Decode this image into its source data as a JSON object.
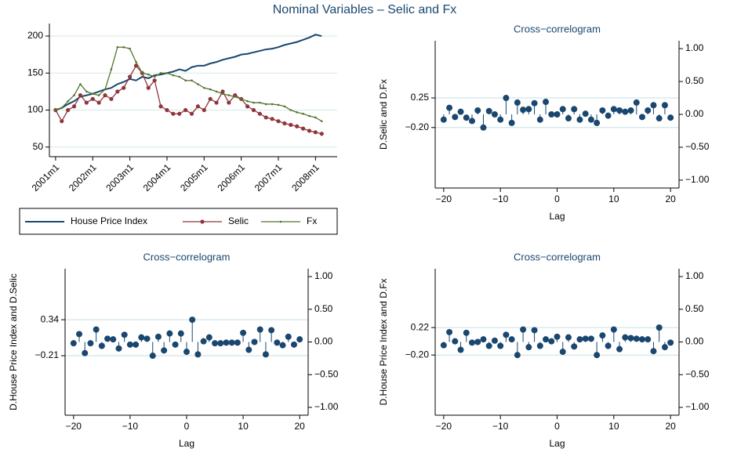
{
  "title": "Nominal Variables – Selic and Fx",
  "chart_data": [
    {
      "type": "line",
      "x": [
        "2001m1",
        "2001m3",
        "2001m5",
        "2001m7",
        "2001m9",
        "2001m11",
        "2002m1",
        "2002m3",
        "2002m5",
        "2002m7",
        "2002m9",
        "2002m11",
        "2003m1",
        "2003m3",
        "2003m5",
        "2003m7",
        "2003m9",
        "2003m11",
        "2004m1",
        "2004m3",
        "2004m5",
        "2004m7",
        "2004m9",
        "2004m11",
        "2005m1",
        "2005m3",
        "2005m5",
        "2005m7",
        "2005m9",
        "2005m11",
        "2006m1",
        "2006m3",
        "2006m5",
        "2006m7",
        "2006m9",
        "2006m11",
        "2007m1",
        "2007m3",
        "2007m5",
        "2007m7",
        "2007m9",
        "2007m11",
        "2008m1",
        "2008m3"
      ],
      "xlim": [
        "2000m11",
        "2008m8"
      ],
      "xticks": [
        "2001m1",
        "2002m1",
        "2003m1",
        "2004m1",
        "2005m1",
        "2006m1",
        "2007m1",
        "2008m1"
      ],
      "ylim": [
        37,
        217
      ],
      "yticks": [
        50,
        100,
        150,
        200
      ],
      "grid": true,
      "series": [
        {
          "name": "House Price Index",
          "color": "#1a476f",
          "values": [
            100,
            103,
            108,
            112,
            118,
            120,
            122,
            125,
            128,
            130,
            135,
            138,
            142,
            140,
            145,
            143,
            147,
            148,
            150,
            152,
            155,
            153,
            158,
            160,
            160,
            163,
            165,
            168,
            170,
            172,
            175,
            176,
            178,
            180,
            182,
            183,
            185,
            188,
            190,
            192,
            195,
            198,
            202,
            200
          ]
        },
        {
          "name": "Selic",
          "color": "#90353b",
          "values": [
            100,
            85,
            100,
            105,
            120,
            110,
            115,
            110,
            120,
            115,
            125,
            130,
            145,
            160,
            150,
            130,
            140,
            105,
            100,
            95,
            95,
            100,
            95,
            105,
            100,
            115,
            110,
            125,
            110,
            120,
            115,
            105,
            100,
            95,
            90,
            88,
            85,
            82,
            80,
            78,
            75,
            72,
            70,
            68
          ]
        },
        {
          "name": "Fx",
          "color": "#55752f",
          "values": [
            100,
            103,
            112,
            120,
            135,
            125,
            122,
            120,
            128,
            155,
            185,
            185,
            183,
            165,
            150,
            148,
            145,
            150,
            150,
            147,
            145,
            140,
            140,
            135,
            130,
            128,
            125,
            122,
            120,
            118,
            115,
            112,
            110,
            110,
            108,
            108,
            107,
            105,
            100,
            97,
            95,
            92,
            90,
            85
          ]
        }
      ]
    },
    {
      "type": "correlogram",
      "title": "Cross−correlogram",
      "xlabel": "Lag",
      "ylabel": "D.Selic and D.Fx",
      "color": "#1a476f",
      "x": [
        -20,
        -19,
        -18,
        -17,
        -16,
        -15,
        -14,
        -13,
        -12,
        -11,
        -10,
        -9,
        -8,
        -7,
        -6,
        -5,
        -4,
        -3,
        -2,
        -1,
        0,
        1,
        2,
        3,
        4,
        5,
        6,
        7,
        8,
        9,
        10,
        11,
        12,
        13,
        14,
        15,
        16,
        17,
        18,
        19,
        20
      ],
      "values": [
        -0.08,
        0.1,
        -0.04,
        0.04,
        -0.05,
        -0.1,
        0.06,
        -0.2,
        0.05,
        0.0,
        -0.08,
        0.25,
        -0.13,
        0.18,
        0.07,
        0.08,
        0.17,
        -0.08,
        0.19,
        0.0,
        0.0,
        0.08,
        -0.06,
        0.08,
        -0.08,
        0.01,
        -0.08,
        -0.13,
        0.06,
        -0.02,
        0.08,
        0.06,
        0.04,
        0.06,
        0.18,
        -0.04,
        0.06,
        0.14,
        -0.06,
        0.14,
        -0.05
      ],
      "xlim": [
        -21.5,
        21.5
      ],
      "xticks": [
        {
          "value": -20,
          "label": "−20"
        },
        {
          "value": -10,
          "label": "−10"
        },
        0,
        10,
        20
      ],
      "ylim": [
        -1.12,
        1.12
      ],
      "yticks": [
        0.25,
        {
          "value": -0.2,
          "label": "−0.20"
        }
      ],
      "y2lim": [
        -1.12,
        1.12
      ],
      "y2ticks": [
        {
          "value": 1,
          "label": "1.00"
        },
        {
          "value": 0.5,
          "label": "0.50"
        },
        {
          "value": 0,
          "label": "0.00"
        },
        {
          "value": -0.5,
          "label": "−0.50"
        },
        {
          "value": -1,
          "label": "−1.00"
        }
      ]
    },
    {
      "type": "correlogram",
      "title": "Cross−correlogram",
      "xlabel": "Lag",
      "ylabel": "D.House Price Index and D.Selic",
      "color": "#1a476f",
      "x": [
        -20,
        -19,
        -18,
        -17,
        -16,
        -15,
        -14,
        -13,
        -12,
        -11,
        -10,
        -9,
        -8,
        -7,
        -6,
        -5,
        -4,
        -3,
        -2,
        -1,
        0,
        1,
        2,
        3,
        4,
        5,
        6,
        7,
        8,
        9,
        10,
        11,
        12,
        13,
        14,
        15,
        16,
        17,
        18,
        19,
        20
      ],
      "values": [
        -0.02,
        0.12,
        -0.17,
        -0.02,
        0.19,
        -0.06,
        0.05,
        0.04,
        -0.1,
        0.11,
        -0.04,
        -0.04,
        0.07,
        0.05,
        -0.21,
        0.08,
        -0.13,
        0.13,
        -0.04,
        0.13,
        -0.15,
        0.34,
        -0.19,
        0.01,
        0.07,
        -0.02,
        -0.02,
        -0.01,
        -0.01,
        -0.01,
        0.14,
        -0.12,
        0.0,
        0.19,
        -0.19,
        0.18,
        -0.01,
        -0.05,
        0.08,
        -0.04,
        0.04
      ],
      "xlim": [
        -21.5,
        21.5
      ],
      "xticks": [
        {
          "value": -20,
          "label": "−20"
        },
        {
          "value": -10,
          "label": "−10"
        },
        0,
        10,
        20
      ],
      "ylim": [
        -1.12,
        1.12
      ],
      "yticks": [
        0.34,
        {
          "value": -0.21,
          "label": "−0.21"
        }
      ],
      "y2lim": [
        -1.12,
        1.12
      ],
      "y2ticks": [
        {
          "value": 1,
          "label": "1.00"
        },
        {
          "value": 0.5,
          "label": "0.50"
        },
        {
          "value": 0,
          "label": "0.00"
        },
        {
          "value": -0.5,
          "label": "−0.50"
        },
        {
          "value": -1,
          "label": "−1.00"
        }
      ]
    },
    {
      "type": "correlogram",
      "title": "Cross−correlogram",
      "xlabel": "Lag",
      "ylabel": "D.House Price Index and D.Fx",
      "color": "#1a476f",
      "x": [
        -20,
        -19,
        -18,
        -17,
        -16,
        -15,
        -14,
        -13,
        -12,
        -11,
        -10,
        -9,
        -8,
        -7,
        -6,
        -5,
        -4,
        -3,
        -2,
        -1,
        0,
        1,
        2,
        3,
        4,
        5,
        6,
        7,
        8,
        9,
        10,
        11,
        12,
        13,
        14,
        15,
        16,
        17,
        18,
        19,
        20
      ],
      "values": [
        -0.05,
        0.15,
        0.01,
        -0.12,
        0.14,
        -0.01,
        0.0,
        0.04,
        -0.06,
        0.02,
        -0.06,
        0.11,
        0.04,
        -0.2,
        0.19,
        -0.08,
        0.18,
        -0.06,
        0.04,
        0.01,
        0.08,
        -0.15,
        0.07,
        -0.07,
        0.04,
        0.05,
        0.05,
        -0.2,
        0.1,
        -0.06,
        0.19,
        -0.11,
        0.07,
        0.06,
        0.05,
        0.04,
        0.04,
        -0.14,
        0.22,
        -0.08,
        -0.01
      ],
      "xlim": [
        -21.5,
        21.5
      ],
      "xticks": [
        {
          "value": -20,
          "label": "−20"
        },
        {
          "value": -10,
          "label": "−10"
        },
        0,
        10,
        20
      ],
      "ylim": [
        -1.12,
        1.12
      ],
      "yticks": [
        0.22,
        {
          "value": -0.2,
          "label": "−0.20"
        }
      ],
      "y2lim": [
        -1.12,
        1.12
      ],
      "y2ticks": [
        {
          "value": 1,
          "label": "1.00"
        },
        {
          "value": 0.5,
          "label": "0.50"
        },
        {
          "value": 0,
          "label": "0.00"
        },
        {
          "value": -0.5,
          "label": "−0.50"
        },
        {
          "value": -1,
          "label": "−1.00"
        }
      ]
    }
  ]
}
